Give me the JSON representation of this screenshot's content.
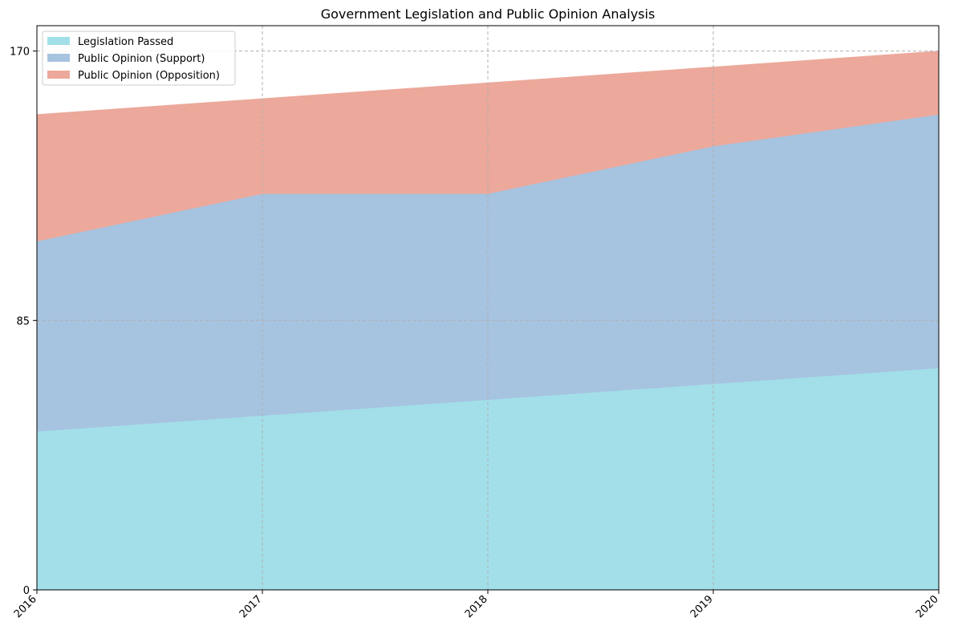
{
  "chart_data": {
    "type": "area",
    "stacked": true,
    "title": "Government Legislation and Public Opinion Analysis",
    "xlabel": "",
    "ylabel": "",
    "x": [
      "2016",
      "2017",
      "2018",
      "2019",
      "2020"
    ],
    "series": [
      {
        "name": "Legislation Passed",
        "values": [
          50,
          55,
          60,
          65,
          70
        ],
        "color": "#a2dfe9"
      },
      {
        "name": "Public Opinion (Support)",
        "values": [
          60,
          70,
          65,
          75,
          80
        ],
        "color": "#a6c3e0"
      },
      {
        "name": "Public Opinion (Opposition)",
        "values": [
          40,
          30,
          35,
          25,
          20
        ],
        "color": "#eca89a"
      }
    ],
    "yticks": [
      "0",
      "85",
      "170"
    ],
    "ylim": [
      0,
      178
    ],
    "grid": true,
    "legend_position": "top-left"
  }
}
